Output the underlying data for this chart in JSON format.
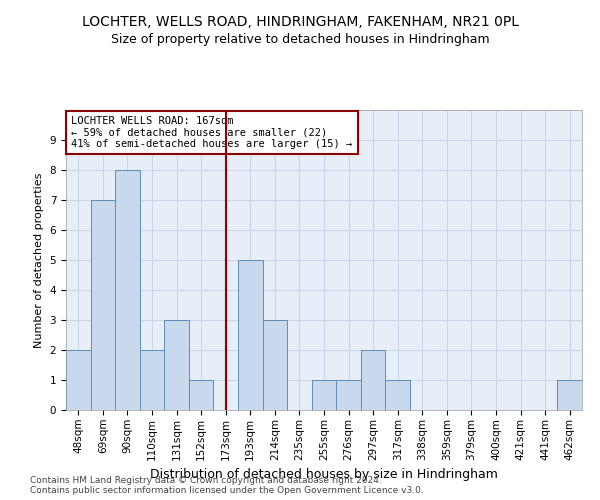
{
  "title": "LOCHTER, WELLS ROAD, HINDRINGHAM, FAKENHAM, NR21 0PL",
  "subtitle": "Size of property relative to detached houses in Hindringham",
  "xlabel": "Distribution of detached houses by size in Hindringham",
  "ylabel": "Number of detached properties",
  "categories": [
    "48sqm",
    "69sqm",
    "90sqm",
    "110sqm",
    "131sqm",
    "152sqm",
    "173sqm",
    "193sqm",
    "214sqm",
    "235sqm",
    "255sqm",
    "276sqm",
    "297sqm",
    "317sqm",
    "338sqm",
    "359sqm",
    "379sqm",
    "400sqm",
    "421sqm",
    "441sqm",
    "462sqm"
  ],
  "values": [
    2,
    7,
    8,
    2,
    3,
    1,
    0,
    5,
    3,
    0,
    1,
    1,
    2,
    1,
    0,
    0,
    0,
    0,
    0,
    0,
    1
  ],
  "bar_color": "#c8d9ee",
  "bar_edge_color": "#5b8db8",
  "vline_color": "#8b0000",
  "vline_x": 6,
  "annotation_box_text": "LOCHTER WELLS ROAD: 167sqm\n← 59% of detached houses are smaller (22)\n41% of semi-detached houses are larger (15) →",
  "annotation_box_color": "white",
  "annotation_box_edge_color": "#8b0000",
  "ylim": [
    0,
    10
  ],
  "yticks": [
    0,
    1,
    2,
    3,
    4,
    5,
    6,
    7,
    8,
    9
  ],
  "grid_color": "#c8d4e8",
  "background_color": "#e8eef8",
  "footer_line1": "Contains HM Land Registry data © Crown copyright and database right 2024.",
  "footer_line2": "Contains public sector information licensed under the Open Government Licence v3.0.",
  "title_fontsize": 10,
  "subtitle_fontsize": 9,
  "xlabel_fontsize": 9,
  "ylabel_fontsize": 8,
  "tick_fontsize": 7.5,
  "footer_fontsize": 6.5,
  "annotation_fontsize": 7.5
}
